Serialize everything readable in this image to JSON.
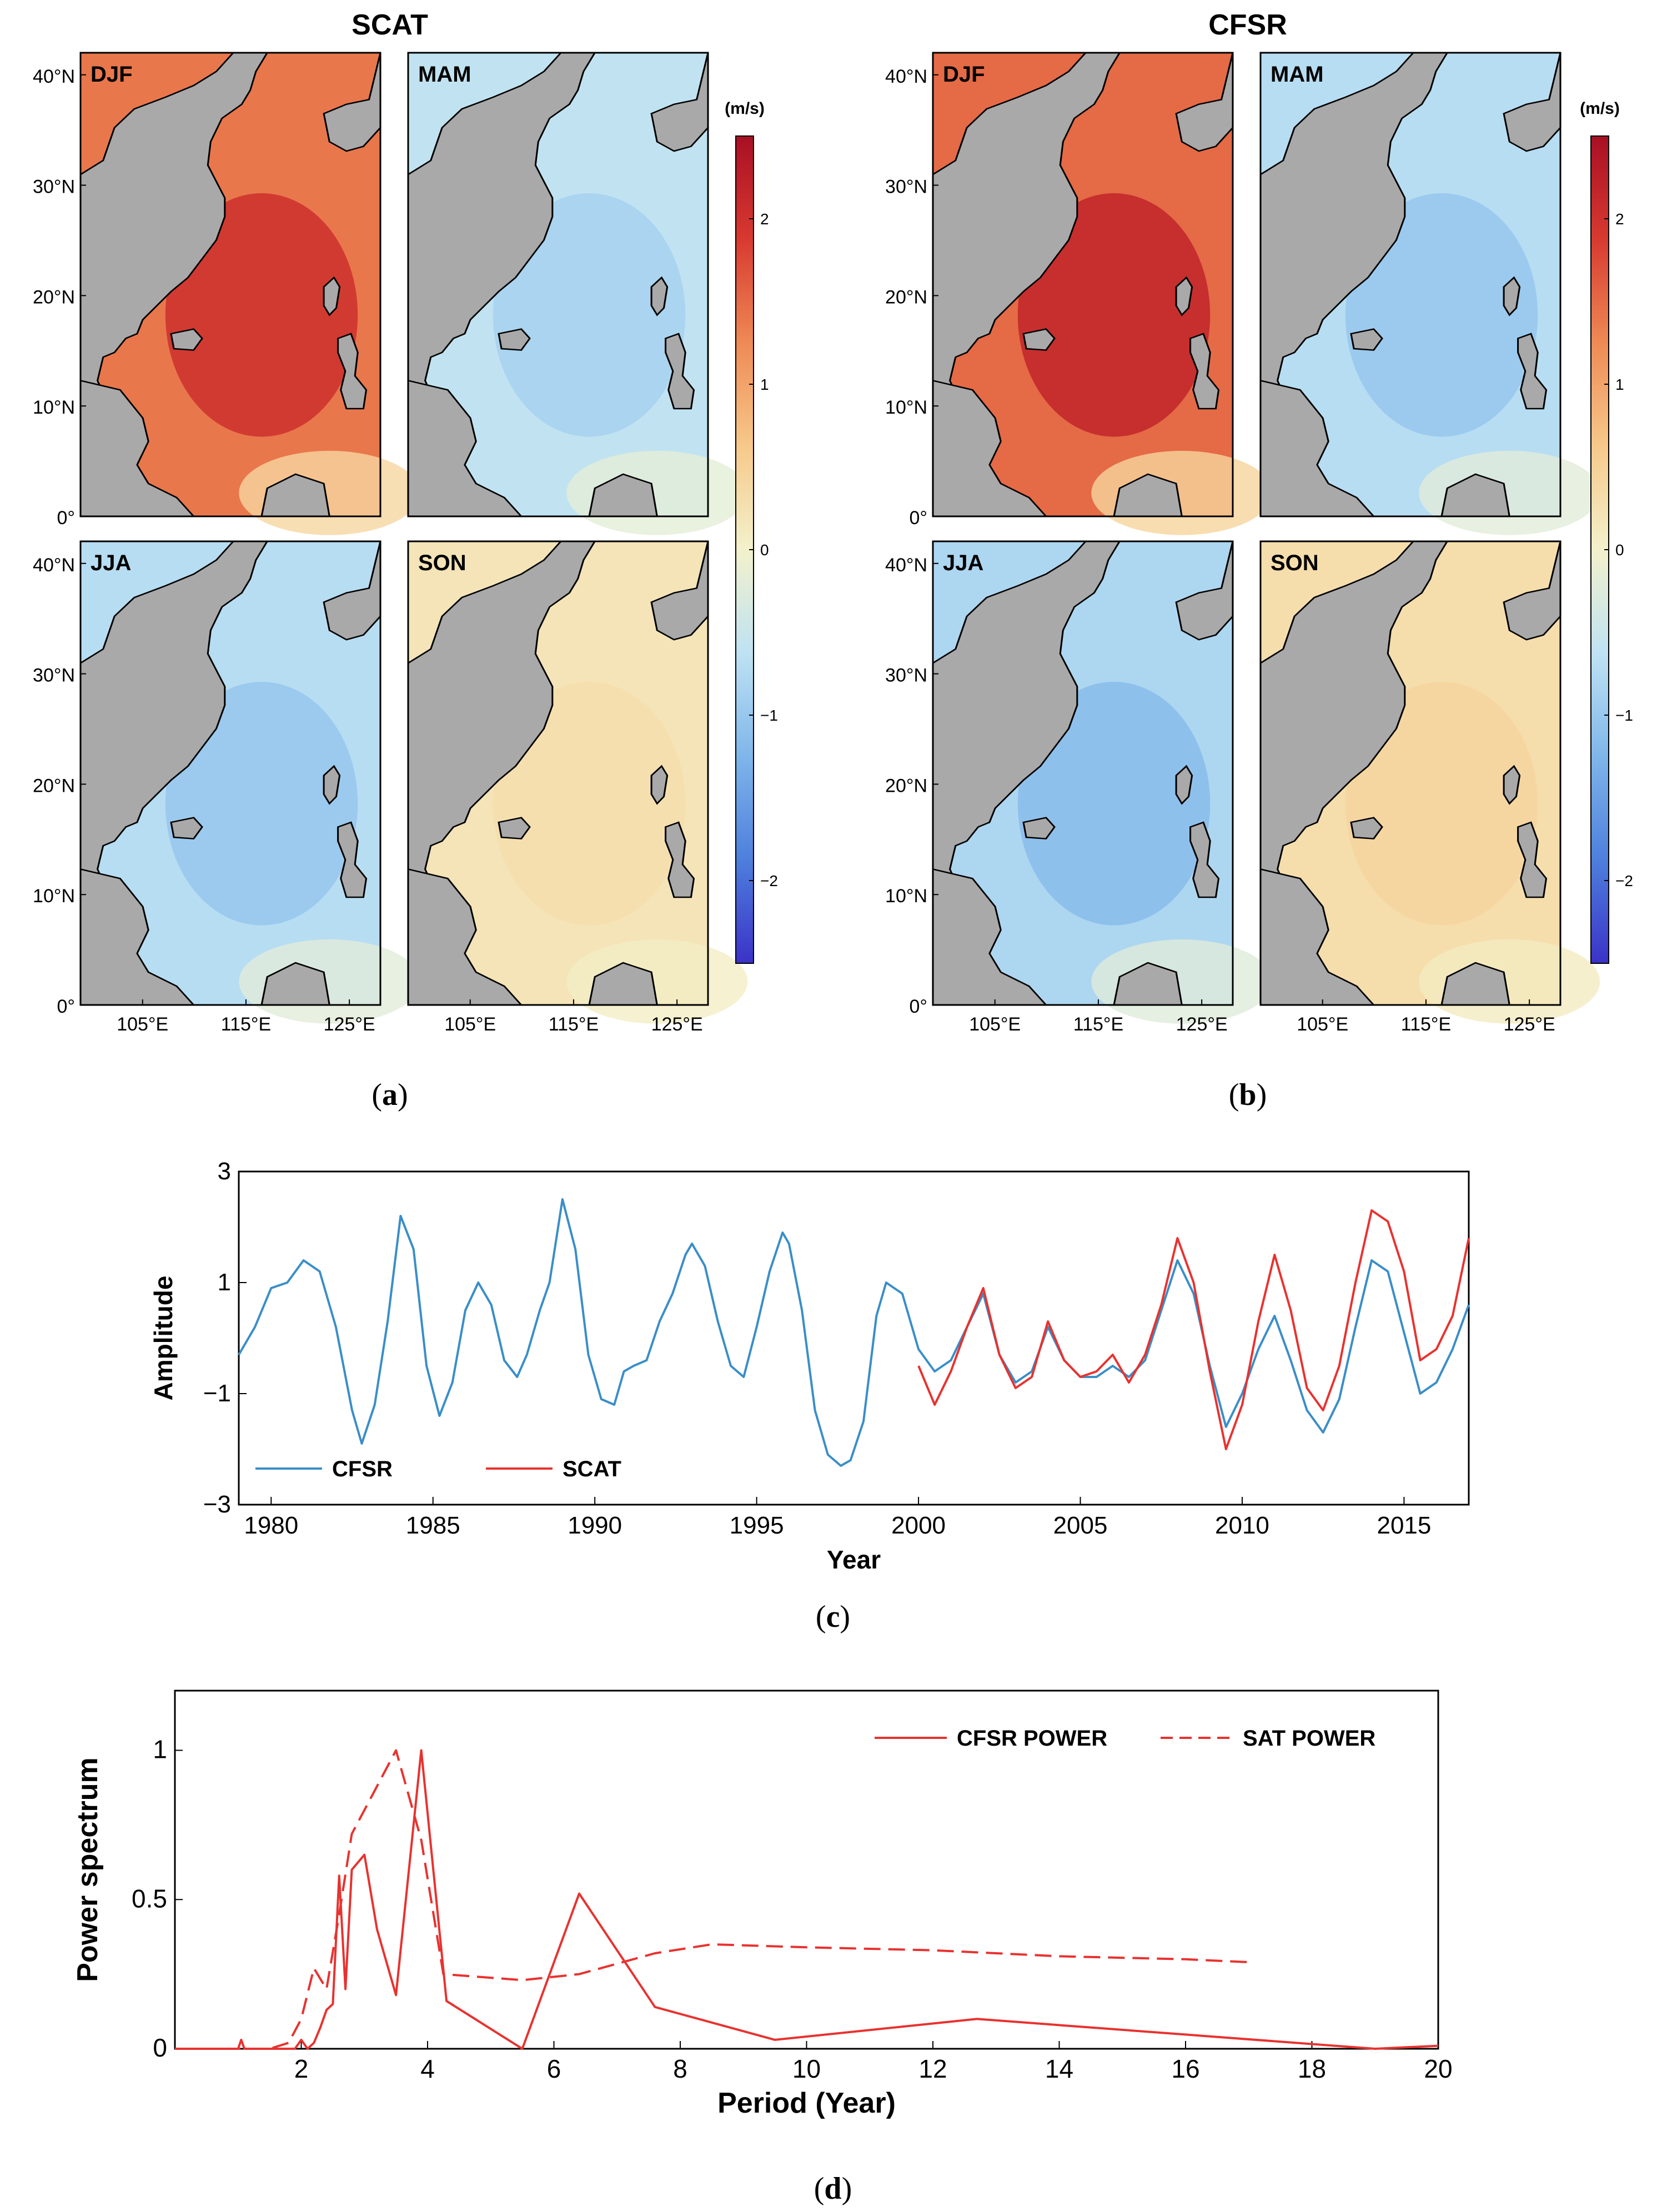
{
  "colors": {
    "land": "#a9a9a9",
    "cfsr_line": "#3a8ec8",
    "scat_line": "#e8322f",
    "spectrum_line": "#e8322f",
    "colormap": [
      "#3b32c8",
      "#4d7fdc",
      "#7fb6ea",
      "#bfe2f3",
      "#f3f1cc",
      "#f7c98a",
      "#ee8a55",
      "#d83a30",
      "#a80f24"
    ]
  },
  "panel_a": {
    "title": "SCAT",
    "caption_letter": "a",
    "season_labels": [
      "DJF",
      "MAM",
      "JJA",
      "SON"
    ],
    "lat_labels": [
      "40°N",
      "30°N",
      "20°N",
      "10°N",
      "0°"
    ],
    "lon_labels": [
      "105°E",
      "115°E",
      "125°E"
    ],
    "season_mean_tone": [
      1.4,
      -0.6,
      -0.7,
      0.2
    ]
  },
  "panel_b": {
    "title": "CFSR",
    "caption_letter": "b",
    "season_labels": [
      "DJF",
      "MAM",
      "JJA",
      "SON"
    ],
    "lat_labels": [
      "40°N",
      "30°N",
      "20°N",
      "10°N",
      "0°"
    ],
    "lon_labels": [
      "105°E",
      "115°E",
      "125°E"
    ],
    "season_mean_tone": [
      1.5,
      -0.7,
      -0.8,
      0.3
    ]
  },
  "colorbar": {
    "unit": "(m/s)",
    "ticks": [
      "2",
      "1",
      "0",
      "−1",
      "−2"
    ],
    "tick_values": [
      2,
      1,
      0,
      -1,
      -2
    ],
    "range": [
      -2.5,
      2.5
    ]
  },
  "chart_data": [
    {
      "type": "line",
      "panel": "c",
      "xlabel": "Year",
      "ylabel": "Amplitude",
      "xlim": [
        1979,
        2017
      ],
      "ylim": [
        -3,
        3
      ],
      "x_ticks": [
        1980,
        1985,
        1990,
        1995,
        2000,
        2005,
        2010,
        2015
      ],
      "y_ticks": [
        3,
        1,
        -1,
        -3
      ],
      "y_tick_labels": [
        "3",
        "1",
        "−1",
        "−3"
      ],
      "legend": "bottom-left",
      "series": [
        {
          "name": "CFSR",
          "x": [
            1979,
            1979.5,
            1980,
            1980.5,
            1981,
            1981.5,
            1982,
            1982.5,
            1982.8,
            1983.2,
            1983.6,
            1984,
            1984.4,
            1984.8,
            1985.2,
            1985.6,
            1986,
            1986.4,
            1986.8,
            1987.2,
            1987.6,
            1987.9,
            1988.3,
            1988.6,
            1989,
            1989.4,
            1989.8,
            1990.2,
            1990.6,
            1990.9,
            1991.2,
            1991.6,
            1992,
            1992.4,
            1992.8,
            1993,
            1993.4,
            1993.8,
            1994.2,
            1994.6,
            1995,
            1995.4,
            1995.8,
            1996,
            1996.4,
            1996.8,
            1997.2,
            1997.6,
            1997.9,
            1998.3,
            1998.7,
            1999,
            1999.5,
            2000,
            2000.5,
            2001,
            2001.5,
            2002,
            2002.5,
            2003,
            2003.5,
            2004,
            2004.5,
            2005,
            2005.5,
            2006,
            2006.5,
            2007,
            2007.5,
            2008,
            2008.5,
            2009,
            2009.5,
            2010,
            2010.5,
            2011,
            2011.5,
            2012,
            2012.5,
            2013,
            2013.5,
            2014,
            2014.5,
            2015,
            2015.5,
            2016,
            2016.5,
            2017
          ],
          "values": [
            -0.3,
            0.2,
            0.9,
            1.0,
            1.4,
            1.2,
            0.2,
            -1.3,
            -1.9,
            -1.2,
            0.3,
            2.2,
            1.6,
            -0.5,
            -1.4,
            -0.8,
            0.5,
            1.0,
            0.6,
            -0.4,
            -0.7,
            -0.3,
            0.5,
            1.0,
            2.5,
            1.6,
            -0.3,
            -1.1,
            -1.2,
            -0.6,
            -0.5,
            -0.4,
            0.3,
            0.8,
            1.5,
            1.7,
            1.3,
            0.3,
            -0.5,
            -0.7,
            0.2,
            1.2,
            1.9,
            1.7,
            0.5,
            -1.3,
            -2.1,
            -2.3,
            -2.2,
            -1.5,
            0.4,
            1.0,
            0.8,
            -0.2,
            -0.6,
            -0.4,
            0.2,
            0.8,
            -0.3,
            -0.8,
            -0.6,
            0.2,
            -0.4,
            -0.7,
            -0.7,
            -0.5,
            -0.7,
            -0.4,
            0.5,
            1.4,
            0.8,
            -0.5,
            -1.6,
            -1.0,
            -0.2,
            0.4,
            -0.4,
            -1.3,
            -1.7,
            -1.1,
            0.2,
            1.4,
            1.2,
            0.1,
            -1.0,
            -0.8,
            -0.2,
            0.6
          ]
        },
        {
          "name": "SCAT",
          "x": [
            2000,
            2000.5,
            2001,
            2001.5,
            2002,
            2002.5,
            2003,
            2003.5,
            2004,
            2004.5,
            2005,
            2005.5,
            2006,
            2006.5,
            2007,
            2007.5,
            2008,
            2008.5,
            2009,
            2009.5,
            2010,
            2010.5,
            2011,
            2011.5,
            2012,
            2012.5,
            2013,
            2013.5,
            2014,
            2014.5,
            2015,
            2015.5,
            2016,
            2016.5,
            2017
          ],
          "values": [
            -0.5,
            -1.2,
            -0.6,
            0.2,
            0.9,
            -0.3,
            -0.9,
            -0.7,
            0.3,
            -0.4,
            -0.7,
            -0.6,
            -0.3,
            -0.8,
            -0.3,
            0.6,
            1.8,
            1.0,
            -0.6,
            -2.0,
            -1.2,
            0.3,
            1.5,
            0.5,
            -0.9,
            -1.3,
            -0.5,
            1.0,
            2.3,
            2.1,
            1.2,
            -0.4,
            -0.2,
            0.4,
            1.8
          ]
        }
      ]
    },
    {
      "type": "line",
      "panel": "d",
      "xlabel": "Period (Year)",
      "ylabel": "Power spectrum",
      "xlim": [
        0,
        20
      ],
      "ylim": [
        0,
        1.2
      ],
      "x_ticks": [
        2,
        4,
        6,
        8,
        10,
        12,
        14,
        16,
        18,
        20
      ],
      "y_ticks": [
        0,
        0.5,
        1
      ],
      "y_tick_labels": [
        "0",
        "0.5",
        "1"
      ],
      "legend": "top-right",
      "series": [
        {
          "name": "CFSR POWER",
          "dash": "solid",
          "x": [
            0,
            0.8,
            1.0,
            1.05,
            1.1,
            1.5,
            1.9,
            2.0,
            2.1,
            2.2,
            2.3,
            2.4,
            2.5,
            2.6,
            2.7,
            2.8,
            3.0,
            3.2,
            3.5,
            3.9,
            4.3,
            5.5,
            6.4,
            7.6,
            9.5,
            12.7,
            19.0,
            20.0
          ],
          "values": [
            0,
            0,
            0,
            0.03,
            0,
            0,
            0,
            0.03,
            0,
            0.02,
            0.07,
            0.13,
            0.15,
            0.58,
            0.2,
            0.6,
            0.65,
            0.4,
            0.18,
            1.0,
            0.16,
            0.0,
            0.52,
            0.14,
            0.03,
            0.1,
            0.0,
            0.01
          ]
        },
        {
          "name": "SAT POWER",
          "dash": "dashed",
          "x": [
            0,
            1.5,
            1.8,
            2.0,
            2.2,
            2.4,
            2.6,
            2.8,
            3.0,
            3.5,
            3.9,
            4.25,
            5.5,
            6.4,
            7.6,
            8.5,
            10,
            12,
            14,
            16,
            17
          ],
          "values": [
            0,
            0,
            0.02,
            0.1,
            0.27,
            0.2,
            0.45,
            0.72,
            0.8,
            1.0,
            0.7,
            0.25,
            0.23,
            0.25,
            0.32,
            0.35,
            0.34,
            0.33,
            0.31,
            0.3,
            0.29
          ]
        }
      ]
    }
  ],
  "panel_c": {
    "caption_letter": "c"
  },
  "panel_d": {
    "caption_letter": "d"
  }
}
